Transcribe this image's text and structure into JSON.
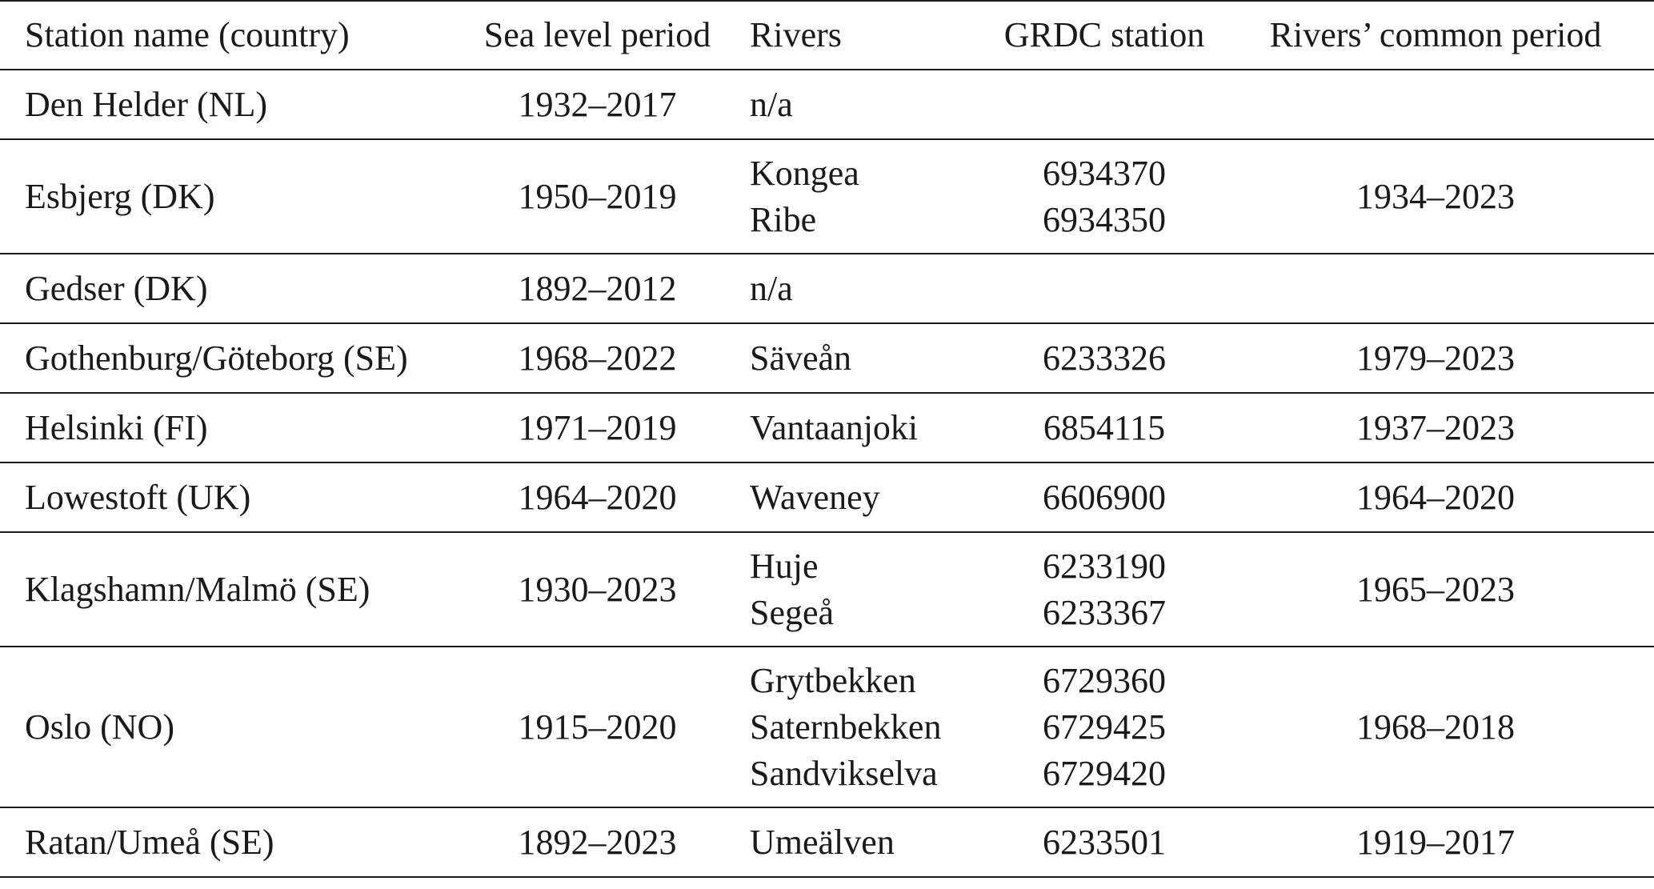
{
  "table": {
    "headers": {
      "station": "Station name (country)",
      "sea_level_period": "Sea level period",
      "rivers": "Rivers",
      "grdc_station": "GRDC station",
      "common_period": "Rivers’ common period"
    },
    "rows": [
      {
        "station": "Den Helder (NL)",
        "sea_level_period": "1932–2017",
        "rivers": [
          "n/a"
        ],
        "grdc": [],
        "common_period": ""
      },
      {
        "station": "Esbjerg (DK)",
        "sea_level_period": "1950–2019",
        "rivers": [
          "Kongea",
          "Ribe"
        ],
        "grdc": [
          "6934370",
          "6934350"
        ],
        "common_period": "1934–2023"
      },
      {
        "station": "Gedser (DK)",
        "sea_level_period": "1892–2012",
        "rivers": [
          "n/a"
        ],
        "grdc": [],
        "common_period": ""
      },
      {
        "station": "Gothenburg/Göteborg (SE)",
        "sea_level_period": "1968–2022",
        "rivers": [
          "Säveån"
        ],
        "grdc": [
          "6233326"
        ],
        "common_period": "1979–2023"
      },
      {
        "station": "Helsinki (FI)",
        "sea_level_period": "1971–2019",
        "rivers": [
          "Vantaanjoki"
        ],
        "grdc": [
          "6854115"
        ],
        "common_period": "1937–2023"
      },
      {
        "station": "Lowestoft (UK)",
        "sea_level_period": "1964–2020",
        "rivers": [
          "Waveney"
        ],
        "grdc": [
          "6606900"
        ],
        "common_period": "1964–2020"
      },
      {
        "station": "Klagshamn/Malmö (SE)",
        "sea_level_period": "1930–2023",
        "rivers": [
          "Huje",
          "Segeå"
        ],
        "grdc": [
          "6233190",
          "6233367"
        ],
        "common_period": "1965–2023"
      },
      {
        "station": "Oslo (NO)",
        "sea_level_period": "1915–2020",
        "rivers": [
          "Grytbekken",
          "Saternbekken",
          "Sandvikselva"
        ],
        "grdc": [
          "6729360",
          "6729425",
          "6729420"
        ],
        "common_period": "1968–2018"
      },
      {
        "station": "Ratan/Umeå (SE)",
        "sea_level_period": "1892–2023",
        "rivers": [
          "Umeälven"
        ],
        "grdc": [
          "6233501"
        ],
        "common_period": "1919–2017"
      }
    ]
  }
}
